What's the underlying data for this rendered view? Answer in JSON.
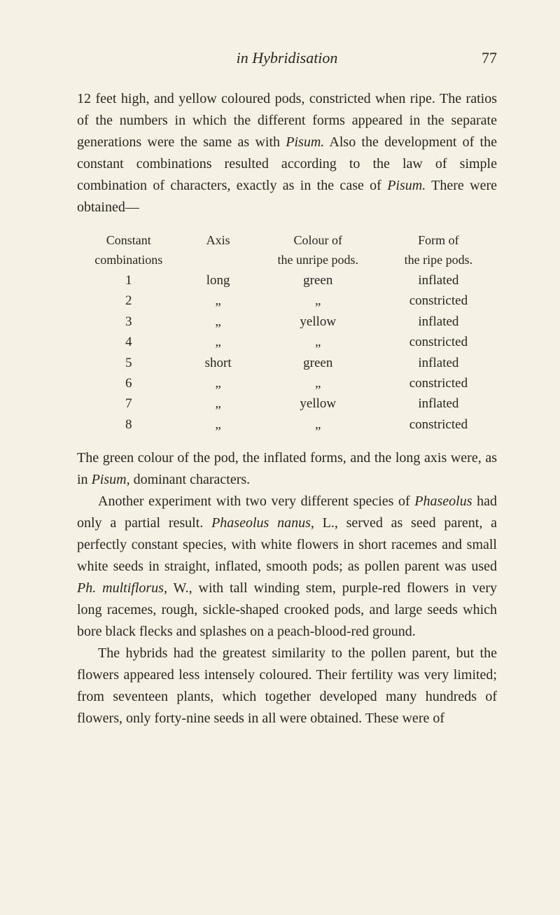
{
  "header": {
    "running_head": "in Hybridisation",
    "page_number": "77"
  },
  "para1": {
    "t0": "12 feet high, and yellow coloured pods, constricted when ripe. The ratios of the numbers in which the different forms appeared in the separate generations were the same as with ",
    "t1": "Pisum.",
    "t2": " Also the development of the constant combinations resulted according to the law of simple combination of characters, exactly as in the case of ",
    "t3": "Pisum.",
    "t4": " There were obtained—"
  },
  "table": {
    "headers": {
      "c1a": "Constant",
      "c1b": "combinations",
      "c2": "Axis",
      "c3a": "Colour of",
      "c3b": "the unripe pods.",
      "c4a": "Form of",
      "c4b": "the ripe pods."
    },
    "rows": [
      {
        "c1": "1",
        "c2": "long",
        "c3": "green",
        "c4": "inflated"
      },
      {
        "c1": "2",
        "c2": "„",
        "c3": "„",
        "c4": "constricted"
      },
      {
        "c1": "3",
        "c2": "„",
        "c3": "yellow",
        "c4": "inflated"
      },
      {
        "c1": "4",
        "c2": "„",
        "c3": "„",
        "c4": "constricted"
      },
      {
        "c1": "5",
        "c2": "short",
        "c3": "green",
        "c4": "inflated"
      },
      {
        "c1": "6",
        "c2": "„",
        "c3": "„",
        "c4": "constricted"
      },
      {
        "c1": "7",
        "c2": "„",
        "c3": "yellow",
        "c4": "inflated"
      },
      {
        "c1": "8",
        "c2": "„",
        "c3": "„",
        "c4": "constricted"
      }
    ]
  },
  "para2": {
    "t0": "The green colour of the pod, the inflated forms, and the long axis were, as in ",
    "t1": "Pisum,",
    "t2": " dominant characters."
  },
  "para3": {
    "t0": "Another experiment with two very different species of ",
    "t1": "Phaseolus",
    "t2": " had only a partial result. ",
    "t3": "Phaseolus nanus,",
    "t4": " L., served as seed parent, a perfectly constant species, with white flowers in short racemes and small white seeds in straight, inflated, smooth pods; as pollen parent was used ",
    "t5": "Ph. multiflorus,",
    "t6": " W., with tall winding stem, purple-red flowers in very long racemes, rough, sickle-shaped crooked pods, and large seeds which bore black flecks and splashes on a peach-blood-red ground."
  },
  "para4": {
    "t0": "The hybrids had the greatest similarity to the pollen parent, but the flowers appeared less intensely coloured. Their fertility was very limited; from seventeen plants, which together developed many hundreds of flowers, only forty-nine seeds in all were obtained. These were of"
  }
}
